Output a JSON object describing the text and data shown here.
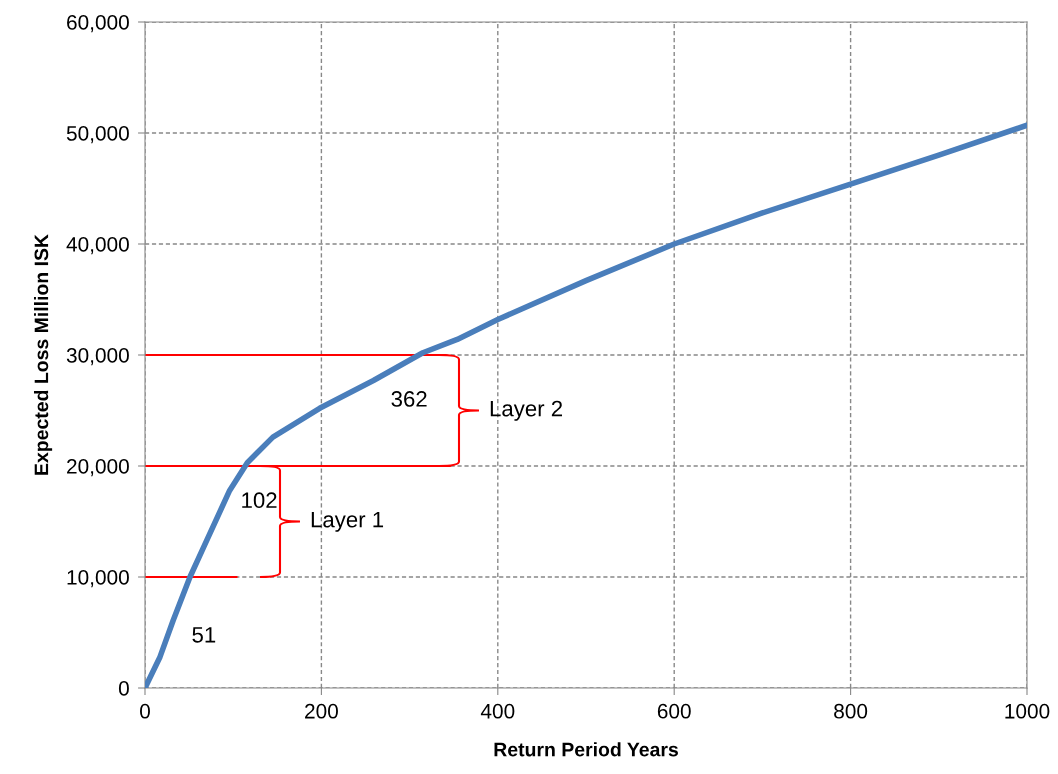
{
  "chart_data": {
    "type": "line",
    "xlabel": "Return Period Years",
    "ylabel": "Expected Loss Million ISK",
    "xlim": [
      0,
      1000
    ],
    "xticks": [
      0,
      200,
      400,
      600,
      800,
      1000
    ],
    "ylim": [
      0,
      60000
    ],
    "yticks": [
      {
        "value": 0,
        "label": "0"
      },
      {
        "value": 10000,
        "label": "10,000"
      },
      {
        "value": 20000,
        "label": "20,000"
      },
      {
        "value": 30000,
        "label": "30,000"
      },
      {
        "value": 40000,
        "label": "40,000"
      },
      {
        "value": 50000,
        "label": "50,000"
      },
      {
        "value": 60000,
        "label": "60,000"
      }
    ],
    "grid": true,
    "line_style": "solid",
    "series": [
      {
        "color": "#4a7ebb",
        "x": [
          0,
          17,
          32,
          51,
          70,
          96,
          116,
          145,
          198,
          259,
          315,
          354,
          400,
          500,
          600,
          700,
          800,
          900,
          1000
        ],
        "values": [
          0,
          2800,
          6100,
          10000,
          13300,
          17800,
          20300,
          22600,
          25200,
          27700,
          30200,
          31400,
          33200,
          36700,
          40000,
          42800,
          45400,
          48000,
          50700
        ]
      },
      {
        "color": "#ff0000",
        "x": [
          0,
          104
        ],
        "values": [
          10000,
          10000
        ]
      },
      {
        "color": "#ff0000",
        "x": [
          0,
          346
        ],
        "values": [
          20000,
          20000
        ]
      },
      {
        "color": "#ff0000",
        "x": [
          0,
          341
        ],
        "values": [
          30000,
          30000
        ]
      }
    ],
    "annotations": [
      "51",
      "102",
      "362",
      "Layer 1",
      "Layer 2"
    ]
  }
}
